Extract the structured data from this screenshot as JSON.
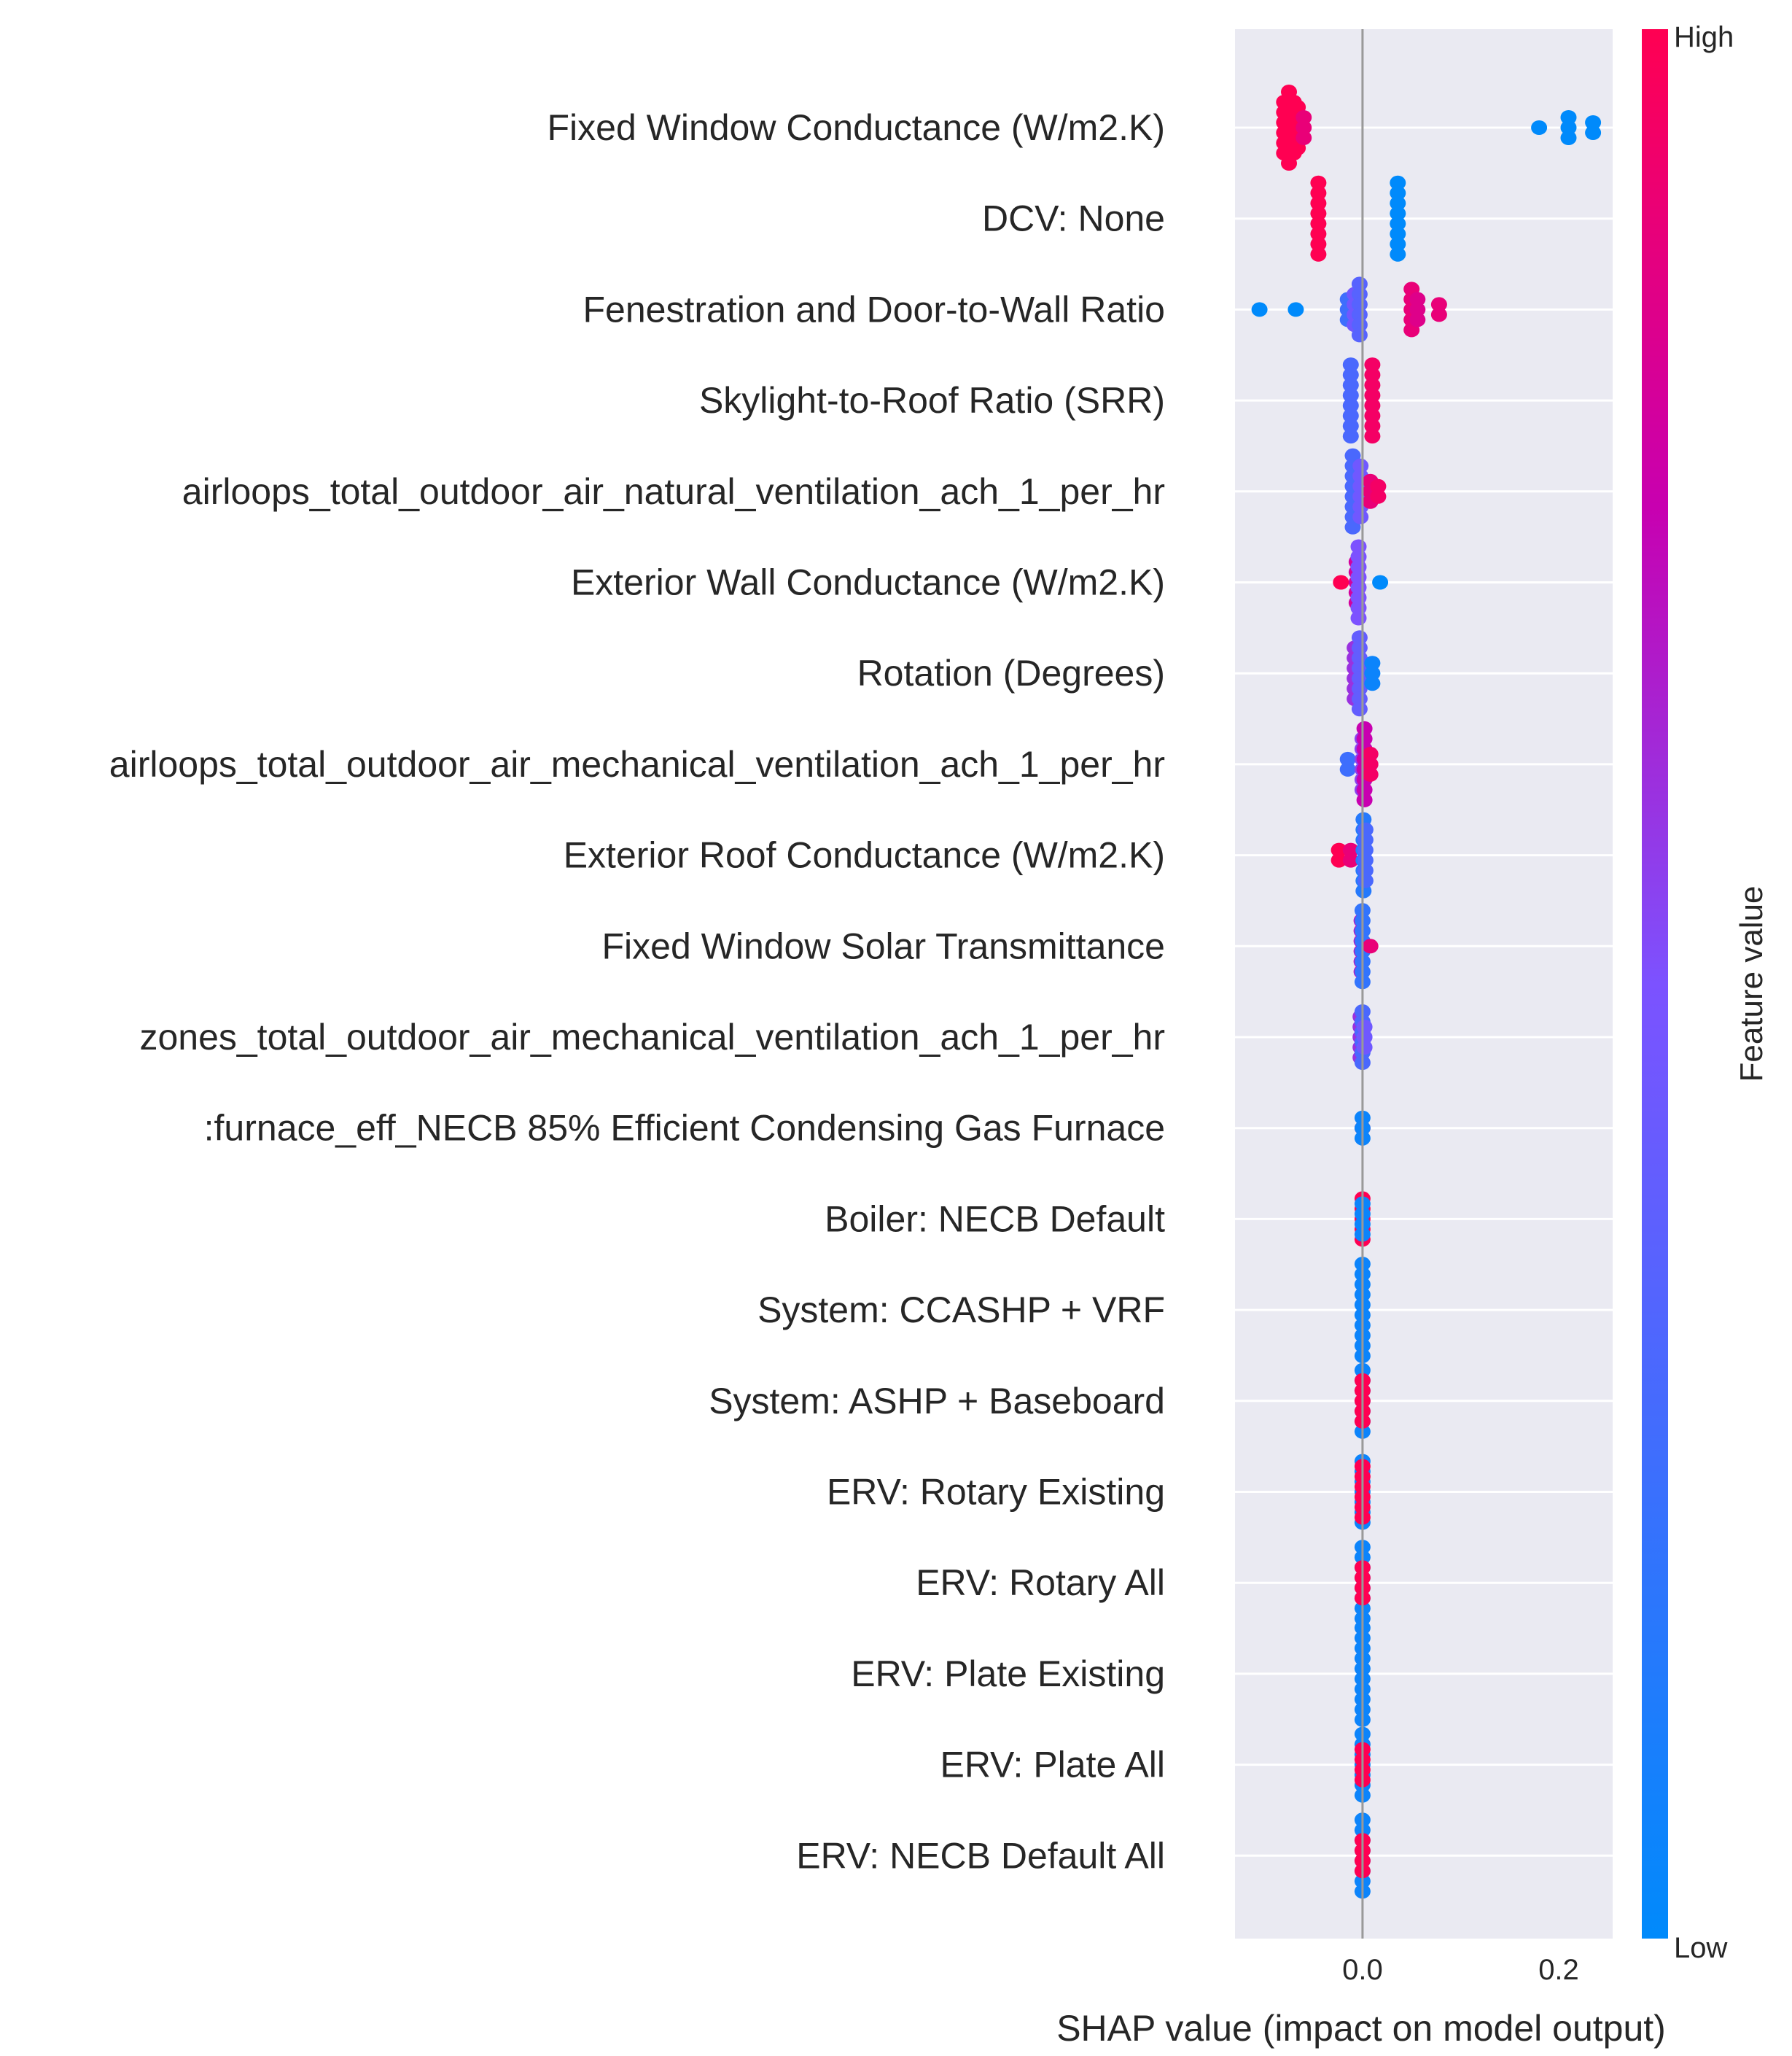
{
  "chart_data": {
    "type": "scatter",
    "subtype": "shap-beeswarm-summary",
    "xlabel": "SHAP value (impact on model output)",
    "xlim": [
      -0.13,
      0.255
    ],
    "xticks": [
      {
        "value": 0.0,
        "label": "0.0"
      },
      {
        "value": 0.2,
        "label": "0.2"
      }
    ],
    "grid": true,
    "zero_line": true,
    "colorbar": {
      "title": "Feature value",
      "high_label": "High",
      "low_label": "Low",
      "low_color": "#008afb",
      "high_color": "#ff0052",
      "placement": "right"
    },
    "features": [
      {
        "name": "Fixed Window Conductance (W/m2.K)",
        "points": [
          [
            -0.08,
            1,
            6
          ],
          [
            -0.075,
            1,
            8
          ],
          [
            -0.07,
            1,
            6
          ],
          [
            -0.066,
            1,
            5
          ],
          [
            -0.06,
            0.9,
            3
          ],
          [
            0.18,
            0,
            1
          ],
          [
            0.21,
            0,
            3
          ],
          [
            0.235,
            0,
            2
          ]
        ]
      },
      {
        "name": "DCV: None",
        "points": [
          [
            -0.045,
            1,
            8
          ],
          [
            0.036,
            0,
            8
          ]
        ]
      },
      {
        "name": "Fenestration and Door-to-Wall Ratio",
        "points": [
          [
            -0.105,
            0,
            1
          ],
          [
            -0.068,
            0,
            1
          ],
          [
            -0.015,
            0.25,
            3
          ],
          [
            -0.008,
            0.45,
            4
          ],
          [
            -0.003,
            0.35,
            6
          ],
          [
            0.05,
            0.9,
            5
          ],
          [
            0.056,
            0.85,
            3
          ],
          [
            0.078,
            0.9,
            2
          ]
        ]
      },
      {
        "name": "Skylight-to-Roof Ratio (SRR)",
        "points": [
          [
            -0.012,
            0.3,
            8
          ],
          [
            0.01,
            0.95,
            8
          ]
        ]
      },
      {
        "name": "airloops_total_outdoor_air_natural_ventilation_ach_1_per_hr",
        "points": [
          [
            -0.01,
            0.3,
            8
          ],
          [
            -0.002,
            0.45,
            6
          ],
          [
            0.008,
            0.9,
            3
          ],
          [
            0.016,
            0.95,
            2
          ]
        ]
      },
      {
        "name": "Exterior Wall Conductance (W/m2.K)",
        "points": [
          [
            -0.022,
            1,
            1
          ],
          [
            -0.006,
            0.8,
            5
          ],
          [
            -0.004,
            0.5,
            8
          ],
          [
            0.018,
            0,
            1
          ]
        ]
      },
      {
        "name": "Rotation (Degrees)",
        "points": [
          [
            -0.008,
            0.6,
            6
          ],
          [
            -0.003,
            0.4,
            8
          ],
          [
            0.01,
            0.05,
            3
          ]
        ]
      },
      {
        "name": "airloops_total_outdoor_air_mechanical_ventilation_ach_1_per_hr",
        "points": [
          [
            -0.015,
            0.25,
            2
          ],
          [
            0.0,
            0.55,
            6
          ],
          [
            0.002,
            0.75,
            8
          ],
          [
            0.008,
            0.95,
            3
          ]
        ]
      },
      {
        "name": "Exterior Roof Conductance (W/m2.K)",
        "points": [
          [
            -0.024,
            1,
            2
          ],
          [
            -0.012,
            0.9,
            2
          ],
          [
            0.001,
            0.15,
            8
          ],
          [
            0.003,
            0.3,
            6
          ]
        ]
      },
      {
        "name": "Fixed Window Solar Transmittance",
        "points": [
          [
            -0.001,
            0.7,
            6
          ],
          [
            0.0,
            0.2,
            8
          ],
          [
            0.008,
            0.9,
            1
          ]
        ]
      },
      {
        "name": "zones_total_outdoor_air_mechanical_ventilation_ach_1_per_hr",
        "points": [
          [
            -0.002,
            0.6,
            5
          ],
          [
            0.0,
            0.3,
            6
          ],
          [
            0.002,
            0.45,
            3
          ]
        ]
      },
      {
        "name": ":furnace_eff_NECB 85% Efficient Condensing Gas Furnace",
        "points": [
          [
            0.0,
            1,
            1
          ],
          [
            0.0,
            0.05,
            3
          ]
        ]
      },
      {
        "name": "Boiler: NECB Default",
        "points": [
          [
            0.0,
            1,
            5
          ],
          [
            0.0,
            0.05,
            4
          ]
        ]
      },
      {
        "name": "System: CCASHP + VRF",
        "points": [
          [
            0.0,
            0.05,
            10
          ]
        ]
      },
      {
        "name": "System: ASHP + Baseboard",
        "points": [
          [
            0.0,
            0.05,
            7
          ],
          [
            0.0,
            1,
            5
          ]
        ]
      },
      {
        "name": "ERV: Rotary Existing",
        "points": [
          [
            0.0,
            0.05,
            7
          ],
          [
            0.0,
            1,
            6
          ]
        ]
      },
      {
        "name": "ERV: Rotary All",
        "points": [
          [
            0.0,
            0.05,
            8
          ],
          [
            0.0,
            1,
            4
          ]
        ]
      },
      {
        "name": "ERV: Plate Existing",
        "points": [
          [
            0.0,
            0.05,
            10
          ]
        ]
      },
      {
        "name": "ERV: Plate All",
        "points": [
          [
            0.0,
            0.05,
            7
          ],
          [
            0.0,
            1,
            4
          ]
        ]
      },
      {
        "name": "ERV: NECB Default All",
        "points": [
          [
            0.0,
            0.05,
            8
          ],
          [
            0.0,
            1,
            4
          ]
        ]
      }
    ]
  }
}
